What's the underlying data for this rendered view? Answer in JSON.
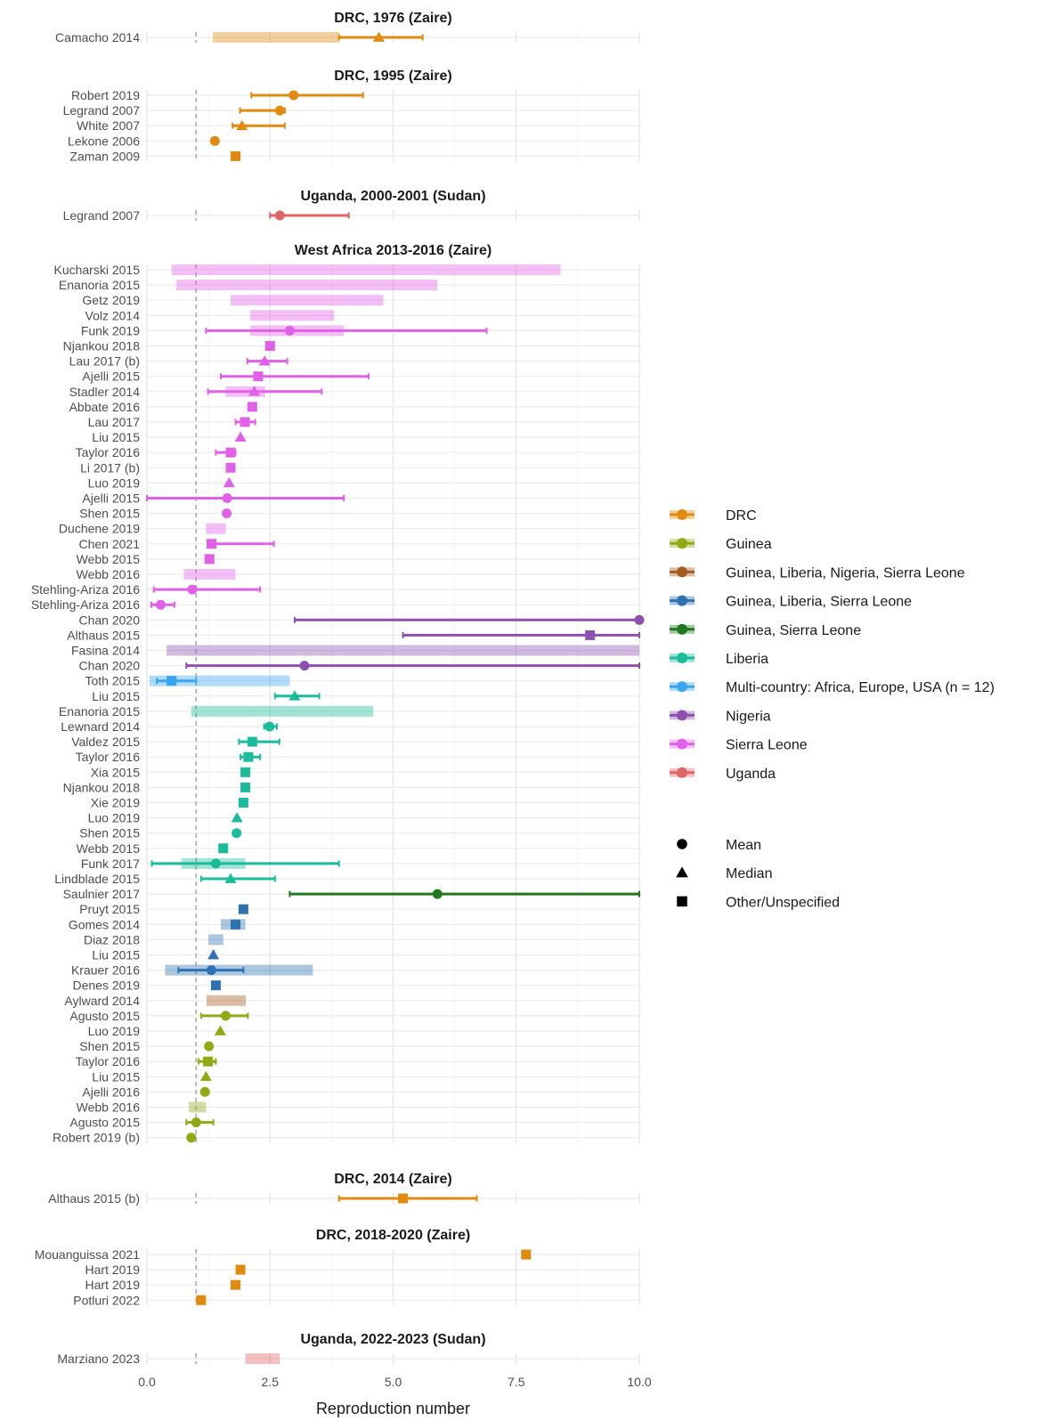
{
  "chart_data": {
    "type": "forest",
    "xlabel": "Reproduction number",
    "xlim": [
      0,
      10
    ],
    "xticks": [
      0,
      2.5,
      5,
      7.5,
      10
    ],
    "xtick_labels": [
      "0.0",
      "2.5",
      "5.0",
      "7.5",
      "10.0"
    ],
    "reference_line": 1,
    "groups": {
      "DRC": "#E08A10",
      "Guinea": "#8FAA14",
      "Guinea, Liberia, Nigeria, Sierra Leone": "#A65A1E",
      "Guinea, Liberia, Sierra Leone": "#2E72B2",
      "Guinea, Sierra Leone": "#1F7A1F",
      "Liberia": "#1ABC9C",
      "Multi-country: Africa, Europe, USA (n = 12)": "#3AA6F0",
      "Nigeria": "#8E4FB0",
      "Sierra Leone": "#E060E8",
      "Uganda": "#E06464"
    },
    "legend_groups": [
      "DRC",
      "Guinea",
      "Guinea, Liberia, Nigeria, Sierra Leone",
      "Guinea, Liberia, Sierra Leone",
      "Guinea, Sierra Leone",
      "Liberia",
      "Multi-country: Africa, Europe, USA (n = 12)",
      "Nigeria",
      "Sierra Leone",
      "Uganda"
    ],
    "legend_shapes": [
      {
        "shape": "circle",
        "label": "Mean"
      },
      {
        "shape": "triangle",
        "label": "Median"
      },
      {
        "shape": "square",
        "label": "Other/Unspecified"
      }
    ],
    "panels": [
      {
        "title": "DRC, 1976 (Zaire)",
        "rows": [
          {
            "label": "Camacho 2014",
            "group": "DRC",
            "shape": "triangle",
            "est": 4.71,
            "ci": [
              3.9,
              5.6
            ],
            "range": [
              1.34,
              3.9
            ]
          }
        ]
      },
      {
        "title": "DRC, 1995 (Zaire)",
        "rows": [
          {
            "label": "Robert 2019",
            "group": "DRC",
            "shape": "circle",
            "est": 2.98,
            "ci": [
              2.12,
              4.39
            ]
          },
          {
            "label": "Legrand 2007",
            "group": "DRC",
            "shape": "circle",
            "est": 2.7,
            "ci": [
              1.89,
              2.8
            ]
          },
          {
            "label": "White 2007",
            "group": "DRC",
            "shape": "triangle",
            "est": 1.93,
            "ci": [
              1.74,
              2.8
            ]
          },
          {
            "label": "Lekone 2006",
            "group": "DRC",
            "shape": "circle",
            "est": 1.38
          },
          {
            "label": "Zaman 2009",
            "group": "DRC",
            "shape": "square",
            "est": 1.8
          }
        ]
      },
      {
        "title": "Uganda, 2000-2001 (Sudan)",
        "rows": [
          {
            "label": "Legrand 2007",
            "group": "Uganda",
            "shape": "circle",
            "est": 2.7,
            "ci": [
              2.5,
              4.1
            ]
          }
        ]
      },
      {
        "title": "West Africa 2013-2016 (Zaire)",
        "rows": [
          {
            "label": "Kucharski 2015",
            "group": "Sierra Leone",
            "range": [
              0.5,
              8.4
            ]
          },
          {
            "label": "Enanoria 2015",
            "group": "Sierra Leone",
            "range": [
              0.6,
              5.9
            ]
          },
          {
            "label": "Getz 2019",
            "group": "Sierra Leone",
            "range": [
              1.7,
              4.8
            ]
          },
          {
            "label": "Volz 2014",
            "group": "Sierra Leone",
            "range": [
              2.1,
              3.8
            ]
          },
          {
            "label": "Funk 2019",
            "group": "Sierra Leone",
            "shape": "circle",
            "est": 2.9,
            "ci": [
              1.2,
              6.9
            ],
            "range": [
              2.1,
              4.0
            ]
          },
          {
            "label": "Njankou 2018",
            "group": "Sierra Leone",
            "shape": "square",
            "est": 2.5
          },
          {
            "label": "Lau 2017 (b)",
            "group": "Sierra Leone",
            "shape": "triangle",
            "est": 2.39,
            "ci": [
              2.04,
              2.85
            ]
          },
          {
            "label": "Ajelli 2015",
            "group": "Sierra Leone",
            "shape": "square",
            "est": 2.26,
            "ci": [
              1.5,
              4.5
            ]
          },
          {
            "label": "Stadler 2014",
            "group": "Sierra Leone",
            "shape": "triangle",
            "est": 2.18,
            "ci": [
              1.24,
              3.55
            ],
            "range": [
              1.6,
              2.4
            ]
          },
          {
            "label": "Abbate 2016",
            "group": "Sierra Leone",
            "shape": "square",
            "est": 2.14
          },
          {
            "label": "Lau 2017",
            "group": "Sierra Leone",
            "shape": "square",
            "est": 1.99,
            "ci": [
              1.8,
              2.2
            ]
          },
          {
            "label": "Liu 2015",
            "group": "Sierra Leone",
            "shape": "triangle",
            "est": 1.9
          },
          {
            "label": "Taylor 2016",
            "group": "Sierra Leone",
            "shape": "square",
            "est": 1.7,
            "ci": [
              1.4,
              1.8
            ]
          },
          {
            "label": "Li 2017 (b)",
            "group": "Sierra Leone",
            "shape": "square",
            "est": 1.7
          },
          {
            "label": "Luo 2019",
            "group": "Sierra Leone",
            "shape": "triangle",
            "est": 1.67
          },
          {
            "label": "Ajelli 2015",
            "group": "Sierra Leone",
            "shape": "circle",
            "est": 1.63,
            "ci": [
              0.0,
              4.0
            ]
          },
          {
            "label": "Shen 2015",
            "group": "Sierra Leone",
            "shape": "circle",
            "est": 1.62
          },
          {
            "label": "Duchene 2019",
            "group": "Sierra Leone",
            "range": [
              1.2,
              1.6
            ]
          },
          {
            "label": "Chen 2021",
            "group": "Sierra Leone",
            "shape": "square",
            "est": 1.31,
            "ci": [
              1.31,
              2.58
            ]
          },
          {
            "label": "Webb 2015",
            "group": "Sierra Leone",
            "shape": "square",
            "est": 1.27
          },
          {
            "label": "Webb 2016",
            "group": "Sierra Leone",
            "range": [
              0.75,
              1.8
            ]
          },
          {
            "label": "Stehling-Ariza 2016",
            "group": "Sierra Leone",
            "shape": "circle",
            "est": 0.92,
            "ci": [
              0.14,
              2.3
            ]
          },
          {
            "label": "Stehling-Ariza 2016",
            "group": "Sierra Leone",
            "shape": "circle",
            "est": 0.28,
            "ci": [
              0.09,
              0.56
            ]
          },
          {
            "label": "Chan 2020",
            "group": "Nigeria",
            "shape": "circle",
            "est": 10.0,
            "ci": [
              3.0,
              10.0
            ]
          },
          {
            "label": "Althaus 2015",
            "group": "Nigeria",
            "shape": "square",
            "est": 9.0,
            "ci": [
              5.2,
              10.0
            ]
          },
          {
            "label": "Fasina 2014",
            "group": "Nigeria",
            "range": [
              0.4,
              10.0
            ]
          },
          {
            "label": "Chan 2020",
            "group": "Nigeria",
            "shape": "circle",
            "est": 3.2,
            "ci": [
              0.8,
              10.0
            ]
          },
          {
            "label": "Toth 2015",
            "group": "Multi-country: Africa, Europe, USA (n = 12)",
            "shape": "square",
            "est": 0.5,
            "ci": [
              0.2,
              1.0
            ],
            "range": [
              0.05,
              2.9
            ]
          },
          {
            "label": "Liu 2015",
            "group": "Liberia",
            "shape": "triangle",
            "est": 3.0,
            "ci": [
              2.6,
              3.5
            ]
          },
          {
            "label": "Enanoria 2015",
            "group": "Liberia",
            "range": [
              0.9,
              4.6
            ]
          },
          {
            "label": "Lewnard 2014",
            "group": "Liberia",
            "shape": "circle",
            "est": 2.49,
            "ci": [
              2.38,
              2.64
            ]
          },
          {
            "label": "Valdez 2015",
            "group": "Liberia",
            "shape": "square",
            "est": 2.14,
            "ci": [
              1.87,
              2.69
            ]
          },
          {
            "label": "Taylor 2016",
            "group": "Liberia",
            "shape": "square",
            "est": 2.06,
            "ci": [
              1.9,
              2.3
            ]
          },
          {
            "label": "Xia 2015",
            "group": "Liberia",
            "shape": "square",
            "est": 2.0
          },
          {
            "label": "Njankou 2018",
            "group": "Liberia",
            "shape": "square",
            "est": 2.0
          },
          {
            "label": "Xie 2019",
            "group": "Liberia",
            "shape": "square",
            "est": 1.96
          },
          {
            "label": "Luo 2019",
            "group": "Liberia",
            "shape": "triangle",
            "est": 1.83
          },
          {
            "label": "Shen 2015",
            "group": "Liberia",
            "shape": "circle",
            "est": 1.82
          },
          {
            "label": "Webb 2015",
            "group": "Liberia",
            "shape": "square",
            "est": 1.55
          },
          {
            "label": "Funk 2017",
            "group": "Liberia",
            "shape": "circle",
            "est": 1.4,
            "ci": [
              0.1,
              3.9
            ],
            "range": [
              0.7,
              2.0
            ]
          },
          {
            "label": "Lindblade 2015",
            "group": "Liberia",
            "shape": "triangle",
            "est": 1.7,
            "ci": [
              1.1,
              2.6
            ]
          },
          {
            "label": "Saulnier 2017",
            "group": "Guinea, Sierra Leone",
            "shape": "circle",
            "est": 5.9,
            "ci": [
              2.9,
              10.0
            ]
          },
          {
            "label": "Pruyt 2015",
            "group": "Guinea, Liberia, Sierra Leone",
            "shape": "square",
            "est": 1.96
          },
          {
            "label": "Gomes 2014",
            "group": "Guinea, Liberia, Sierra Leone",
            "shape": "square",
            "est": 1.8,
            "range": [
              1.5,
              2.0
            ]
          },
          {
            "label": "Diaz 2018",
            "group": "Guinea, Liberia, Sierra Leone",
            "range": [
              1.25,
              1.55
            ]
          },
          {
            "label": "Liu 2015",
            "group": "Guinea, Liberia, Sierra Leone",
            "shape": "triangle",
            "est": 1.35
          },
          {
            "label": "Krauer 2016",
            "group": "Guinea, Liberia, Sierra Leone",
            "shape": "circle",
            "est": 1.31,
            "ci": [
              0.64,
              1.96
            ],
            "range": [
              0.37,
              3.37
            ]
          },
          {
            "label": "Denes 2019",
            "group": "Guinea, Liberia, Sierra Leone",
            "shape": "square",
            "est": 1.4
          },
          {
            "label": "Aylward 2014",
            "group": "Guinea, Liberia, Nigeria, Sierra Leone",
            "range": [
              1.21,
              2.01
            ]
          },
          {
            "label": "Agusto 2015",
            "group": "Guinea",
            "shape": "circle",
            "est": 1.6,
            "ci": [
              1.1,
              2.05
            ]
          },
          {
            "label": "Luo 2019",
            "group": "Guinea",
            "shape": "triangle",
            "est": 1.49
          },
          {
            "label": "Shen 2015",
            "group": "Guinea",
            "shape": "circle",
            "est": 1.26
          },
          {
            "label": "Taylor 2016",
            "group": "Guinea",
            "shape": "square",
            "est": 1.24,
            "ci": [
              1.05,
              1.4
            ]
          },
          {
            "label": "Liu 2015",
            "group": "Guinea",
            "shape": "triangle",
            "est": 1.2
          },
          {
            "label": "Ajelli 2016",
            "group": "Guinea",
            "shape": "circle",
            "est": 1.18
          },
          {
            "label": "Webb 2016",
            "group": "Guinea",
            "range": [
              0.85,
              1.2
            ]
          },
          {
            "label": "Agusto 2015",
            "group": "Guinea",
            "shape": "circle",
            "est": 1.0,
            "ci": [
              0.8,
              1.35
            ]
          },
          {
            "label": "Robert 2019 (b)",
            "group": "Guinea",
            "shape": "circle",
            "est": 0.9
          }
        ]
      },
      {
        "title": "DRC, 2014 (Zaire)",
        "rows": [
          {
            "label": "Althaus 2015 (b)",
            "group": "DRC",
            "shape": "square",
            "est": 5.2,
            "ci": [
              3.9,
              6.7
            ]
          }
        ]
      },
      {
        "title": "DRC, 2018-2020 (Zaire)",
        "rows": [
          {
            "label": "Mouanguissa 2021",
            "group": "DRC",
            "shape": "square",
            "est": 7.7
          },
          {
            "label": "Hart 2019",
            "group": "DRC",
            "shape": "square",
            "est": 1.9
          },
          {
            "label": "Hart 2019",
            "group": "DRC",
            "shape": "square",
            "est": 1.8
          },
          {
            "label": "Potluri 2022",
            "group": "DRC",
            "shape": "square",
            "est": 1.1
          }
        ]
      },
      {
        "title": "Uganda, 2022-2023 (Sudan)",
        "rows": [
          {
            "label": "Marziano 2023",
            "group": "Uganda",
            "range": [
              2.0,
              2.7
            ]
          }
        ]
      }
    ]
  }
}
